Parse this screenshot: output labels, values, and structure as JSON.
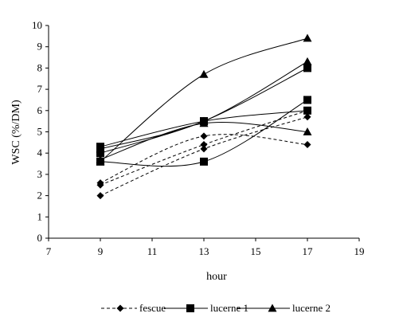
{
  "chart_data": {
    "type": "scatter",
    "xlabel": "hour",
    "ylabel": "WSC (%/DM)",
    "xlim": [
      7,
      19
    ],
    "ylim": [
      0,
      10
    ],
    "x_ticks": [
      "7",
      "9",
      "11",
      "13",
      "15",
      "17",
      "19"
    ],
    "y_ticks": [
      "0",
      "1",
      "2",
      "3",
      "4",
      "5",
      "6",
      "7",
      "8",
      "9",
      "10"
    ],
    "grid": false,
    "legend_position": "bottom",
    "series": [
      {
        "name": "fescue",
        "marker": "diamond",
        "line_style": "dashed",
        "x": [
          9,
          13,
          17
        ],
        "y": [
          2.0,
          4.2,
          5.7
        ]
      },
      {
        "name": "fescue",
        "marker": "diamond",
        "line_style": "dashed",
        "x": [
          9,
          13,
          17
        ],
        "y": [
          2.5,
          4.4,
          6.0
        ]
      },
      {
        "name": "fescue",
        "marker": "diamond",
        "line_style": "dashed",
        "x": [
          9,
          13,
          17
        ],
        "y": [
          2.6,
          4.8,
          4.4
        ]
      },
      {
        "name": "lucerne 1",
        "marker": "square",
        "line_style": "solid",
        "x": [
          9,
          13,
          17
        ],
        "y": [
          3.6,
          3.6,
          6.5
        ]
      },
      {
        "name": "lucerne 1",
        "marker": "square",
        "line_style": "solid",
        "x": [
          9,
          13,
          17
        ],
        "y": [
          4.0,
          5.5,
          8.0
        ]
      },
      {
        "name": "lucerne 1",
        "marker": "square",
        "line_style": "solid",
        "x": [
          9,
          13,
          17
        ],
        "y": [
          4.3,
          5.5,
          6.0
        ]
      },
      {
        "name": "lucerne 2",
        "marker": "triangle",
        "line_style": "solid",
        "x": [
          9,
          13,
          17
        ],
        "y": [
          3.6,
          7.7,
          9.4
        ]
      },
      {
        "name": "lucerne 2",
        "marker": "triangle",
        "line_style": "solid",
        "x": [
          9,
          13,
          17
        ],
        "y": [
          4.2,
          5.5,
          8.3
        ]
      },
      {
        "name": "lucerne 2",
        "marker": "triangle",
        "line_style": "solid",
        "x": [
          9,
          13,
          17
        ],
        "y": [
          3.7,
          5.4,
          5.0
        ]
      }
    ],
    "legend": [
      {
        "label": "fescue",
        "marker": "diamond",
        "line_style": "dashed"
      },
      {
        "label": "lucerne 1",
        "marker": "square",
        "line_style": "solid"
      },
      {
        "label": "lucerne 2",
        "marker": "triangle",
        "line_style": "solid"
      }
    ]
  }
}
